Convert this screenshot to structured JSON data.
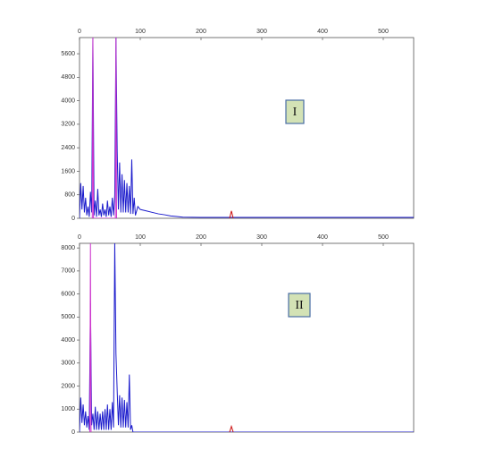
{
  "chart_data": [
    {
      "type": "line",
      "annotation": "I",
      "xlim": [
        0,
        550
      ],
      "xticks": [
        0,
        100,
        200,
        300,
        400,
        500
      ],
      "ylim": [
        0,
        6150
      ],
      "yticks": [
        0,
        800,
        1600,
        2400,
        3200,
        4000,
        4800,
        5600
      ],
      "series": [
        {
          "color": "#1a1acc",
          "x": [
            0,
            2,
            4,
            6,
            8,
            10,
            12,
            14,
            16,
            18,
            20,
            22,
            24,
            26,
            28,
            30,
            32,
            34,
            36,
            38,
            40,
            42,
            44,
            46,
            48,
            50,
            52,
            54,
            56,
            58,
            60,
            62,
            64,
            66,
            68,
            70,
            72,
            74,
            76,
            78,
            80,
            82,
            84,
            86,
            88,
            90,
            92,
            96,
            100,
            110,
            120,
            130,
            140,
            150,
            160,
            170,
            200,
            250,
            300,
            400,
            550
          ],
          "values": [
            0,
            1200,
            300,
            1100,
            200,
            700,
            100,
            400,
            50,
            900,
            200,
            6150,
            100,
            600,
            50,
            1000,
            100,
            300,
            50,
            500,
            100,
            300,
            50,
            600,
            100,
            400,
            50,
            700,
            100,
            800,
            6150,
            2300,
            300,
            1900,
            200,
            1500,
            200,
            1300,
            200,
            1200,
            200,
            1100,
            150,
            2000,
            150,
            700,
            100,
            400,
            300,
            250,
            200,
            150,
            120,
            80,
            60,
            40,
            30,
            30,
            30,
            30,
            30
          ]
        },
        {
          "color": "#cc33cc",
          "x": [
            21,
            22,
            23,
            59,
            60,
            61
          ],
          "values": [
            0,
            6150,
            0,
            0,
            6150,
            0
          ]
        },
        {
          "color": "#cc1111",
          "x": [
            247,
            250,
            253
          ],
          "values": [
            0,
            250,
            0
          ]
        }
      ]
    },
    {
      "type": "line",
      "annotation": "II",
      "xlim": [
        0,
        550
      ],
      "xticks": [
        0,
        100,
        200,
        300,
        400,
        500
      ],
      "ylim": [
        0,
        8200
      ],
      "yticks": [
        0,
        1000,
        2000,
        3000,
        4000,
        5000,
        6000,
        7000,
        8000
      ],
      "series": [
        {
          "color": "#1a1acc",
          "x": [
            0,
            2,
            4,
            6,
            8,
            10,
            12,
            14,
            16,
            18,
            20,
            22,
            24,
            26,
            28,
            30,
            32,
            34,
            36,
            38,
            40,
            42,
            44,
            46,
            48,
            50,
            52,
            54,
            56,
            58,
            60,
            62,
            64,
            66,
            68,
            70,
            72,
            74,
            76,
            78,
            80,
            82,
            84,
            86,
            88,
            100,
            200,
            300,
            550
          ],
          "values": [
            0,
            1500,
            400,
            1200,
            300,
            900,
            200,
            700,
            100,
            5600,
            300,
            800,
            100,
            1100,
            100,
            900,
            100,
            800,
            100,
            900,
            100,
            1000,
            100,
            1200,
            100,
            1000,
            100,
            1300,
            200,
            8200,
            3400,
            1800,
            300,
            1600,
            200,
            1500,
            200,
            1400,
            200,
            1300,
            200,
            2500,
            100,
            300,
            0,
            0,
            0,
            0,
            0
          ]
        },
        {
          "color": "#cc33cc",
          "x": [
            17,
            18,
            19
          ],
          "values": [
            0,
            8200,
            0
          ]
        },
        {
          "color": "#cc1111",
          "x": [
            247,
            250,
            253
          ],
          "values": [
            0,
            250,
            0
          ]
        }
      ]
    }
  ]
}
